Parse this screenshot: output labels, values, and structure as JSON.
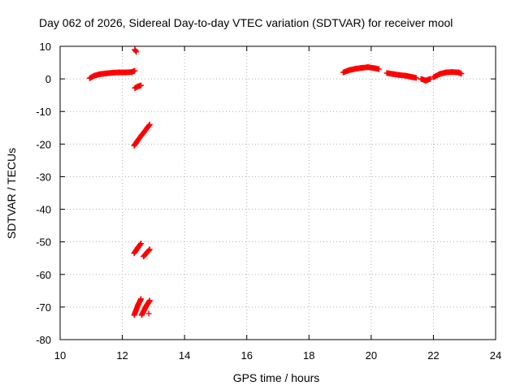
{
  "chart_data": {
    "type": "scatter",
    "title": "Day 062 of 2026, Sidereal Day-to-day VTEC variation (SDTVAR) for receiver mool",
    "xlabel": "GPS time / hours",
    "ylabel": "SDTVAR / TECUs",
    "xlim": [
      10,
      24
    ],
    "ylim": [
      -80,
      10
    ],
    "x_ticks": [
      "10",
      "12",
      "14",
      "16",
      "18",
      "20",
      "22",
      "24"
    ],
    "y_ticks": [
      "10",
      "0",
      "-10",
      "-20",
      "-30",
      "-40",
      "-50",
      "-60",
      "-70",
      "-80"
    ],
    "grid": true,
    "legend": "none",
    "marker": "+",
    "color": "#ff0000",
    "series": [
      {
        "segments": [
          {
            "x": [
              10.95,
              11.1,
              11.3,
              11.5,
              11.7,
              11.9,
              12.1,
              12.3,
              12.4
            ],
            "y": [
              0.2,
              1.0,
              1.5,
              1.7,
              1.9,
              2.0,
              2.0,
              2.1,
              2.5
            ]
          },
          {
            "x": [
              12.4,
              12.45
            ],
            "y": [
              9.0,
              8.3
            ]
          },
          {
            "x": [
              12.4,
              12.5,
              12.6
            ],
            "y": [
              -2.8,
              -2.3,
              -2.0
            ]
          },
          {
            "x": [
              12.38,
              12.5,
              12.6,
              12.7,
              12.8,
              12.88
            ],
            "y": [
              -20.5,
              -18.8,
              -17.5,
              -16.3,
              -15.0,
              -14.0
            ]
          },
          {
            "x": [
              12.38,
              12.5,
              12.6
            ],
            "y": [
              -53.5,
              -51.8,
              -50.5
            ]
          },
          {
            "x": [
              12.68,
              12.8,
              12.88
            ],
            "y": [
              -54.5,
              -53.2,
              -52.3
            ]
          },
          {
            "x": [
              12.38,
              12.5,
              12.6
            ],
            "y": [
              -72.5,
              -69.5,
              -67.5
            ]
          },
          {
            "x": [
              12.62,
              12.75,
              12.88
            ],
            "y": [
              -72.5,
              -70.0,
              -68.0
            ]
          },
          {
            "x": [
              12.85
            ],
            "y": [
              -72.0
            ]
          },
          {
            "x": [
              19.1,
              19.3,
              19.5,
              19.7,
              19.9,
              20.1,
              20.25
            ],
            "y": [
              2.0,
              2.7,
              3.1,
              3.4,
              3.6,
              3.3,
              3.0
            ]
          },
          {
            "x": [
              20.5,
              20.7,
              20.9,
              21.1,
              21.3,
              21.45
            ],
            "y": [
              1.8,
              1.5,
              1.2,
              1.0,
              0.6,
              0.3
            ]
          },
          {
            "x": [
              21.6,
              21.75,
              21.9
            ],
            "y": [
              0.0,
              -0.5,
              0.0
            ]
          },
          {
            "x": [
              22.0,
              22.2,
              22.4,
              22.6,
              22.8,
              22.9
            ],
            "y": [
              0.5,
              1.5,
              2.0,
              2.1,
              2.0,
              1.6
            ]
          }
        ]
      }
    ]
  }
}
